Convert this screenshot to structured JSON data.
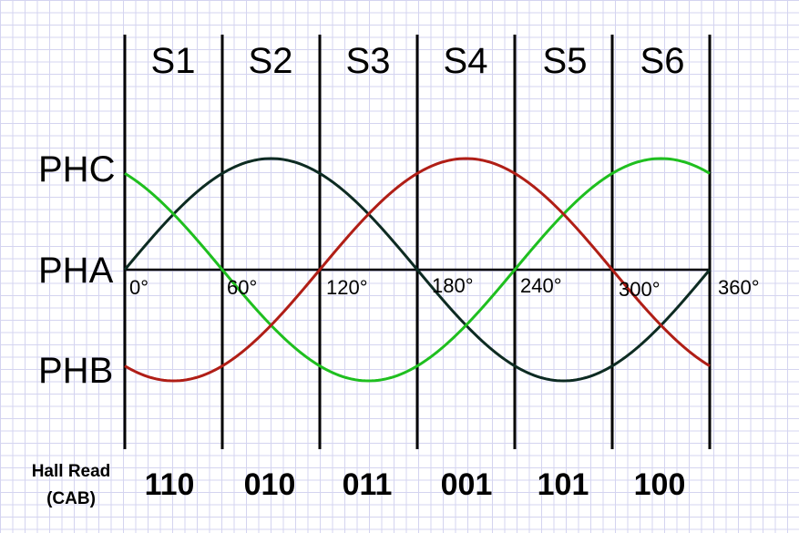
{
  "sectors": [
    "S1",
    "S2",
    "S3",
    "S4",
    "S5",
    "S6"
  ],
  "phase_labels": {
    "top": "PHC",
    "middle": "PHA",
    "bottom": "PHB"
  },
  "angle_ticks": [
    "0°",
    "60°",
    "120°",
    "180°",
    "240°",
    "300°",
    "360°"
  ],
  "hall": {
    "title_line1": "Hall Read",
    "title_line2": "(CAB)",
    "codes": [
      "110",
      "010",
      "011",
      "001",
      "101",
      "100"
    ]
  },
  "waves": [
    {
      "name": "PHA",
      "color": "#0d2b22",
      "phase_deg": 0
    },
    {
      "name": "PHB",
      "color": "#1fbf1f",
      "phase_deg": 240
    },
    {
      "name": "PHC",
      "color": "#b01e16",
      "phase_deg": 120
    }
  ]
}
